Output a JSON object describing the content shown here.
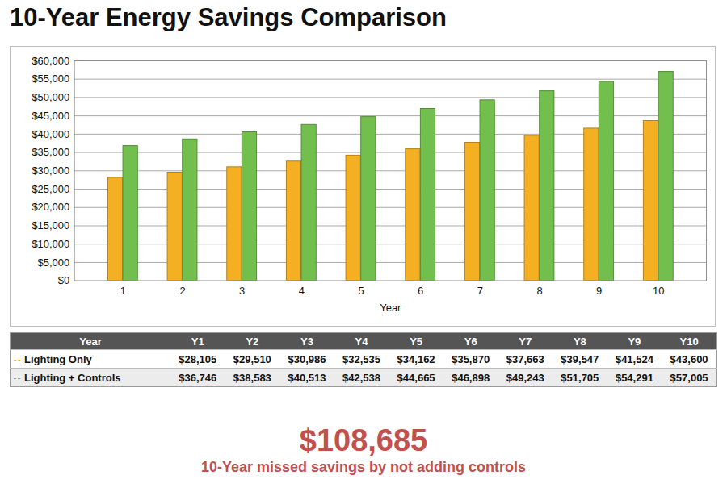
{
  "chart_data": {
    "type": "bar",
    "title": "10-Year Energy Savings Comparison",
    "x_label": "Year",
    "categories": [
      "1",
      "2",
      "3",
      "4",
      "5",
      "6",
      "7",
      "8",
      "9",
      "10"
    ],
    "series": [
      {
        "name": "Lighting Only",
        "color": "#f4b022",
        "values": [
          28105,
          29510,
          30986,
          32535,
          34162,
          35870,
          37663,
          39547,
          41524,
          43600
        ]
      },
      {
        "name": "Lighting + Controls",
        "color": "#72bf4e",
        "values": [
          36746,
          38583,
          40513,
          42538,
          44665,
          46898,
          49243,
          51705,
          54291,
          57005
        ]
      }
    ],
    "ylim": [
      0,
      60000
    ],
    "yticks": [
      {
        "value": 0,
        "label": "$0"
      },
      {
        "value": 5000,
        "label": "$5,000"
      },
      {
        "value": 10000,
        "label": "$10,000"
      },
      {
        "value": 15000,
        "label": "$15,000"
      },
      {
        "value": 20000,
        "label": "$20,000"
      },
      {
        "value": 25000,
        "label": "$25,000"
      },
      {
        "value": 30000,
        "label": "$30,000"
      },
      {
        "value": 35000,
        "label": "$35,000"
      },
      {
        "value": 40000,
        "label": "$40,000"
      },
      {
        "value": 45000,
        "label": "$45,000"
      },
      {
        "value": 50000,
        "label": "$50,000"
      },
      {
        "value": 55000,
        "label": "$55,000"
      },
      {
        "value": 60000,
        "label": "$60,000"
      }
    ],
    "grid": true
  },
  "table": {
    "header": "Year",
    "columns": [
      "Y1",
      "Y2",
      "Y3",
      "Y4",
      "Y5",
      "Y6",
      "Y7",
      "Y8",
      "Y9",
      "Y10"
    ],
    "rows": [
      {
        "label": "Lighting Only",
        "cells": [
          "$28,105",
          "$29,510",
          "$30,986",
          "$32,535",
          "$34,162",
          "$35,870",
          "$37,663",
          "$39,547",
          "$41,524",
          "$43,600"
        ]
      },
      {
        "label": "Lighting + Controls",
        "cells": [
          "$36,746",
          "$38,583",
          "$40,513",
          "$42,538",
          "$44,665",
          "$46,898",
          "$49,243",
          "$51,705",
          "$54,291",
          "$57,005"
        ]
      }
    ]
  },
  "callout": {
    "label": "$108,685",
    "text": "10-Year missed savings by not adding controls"
  }
}
